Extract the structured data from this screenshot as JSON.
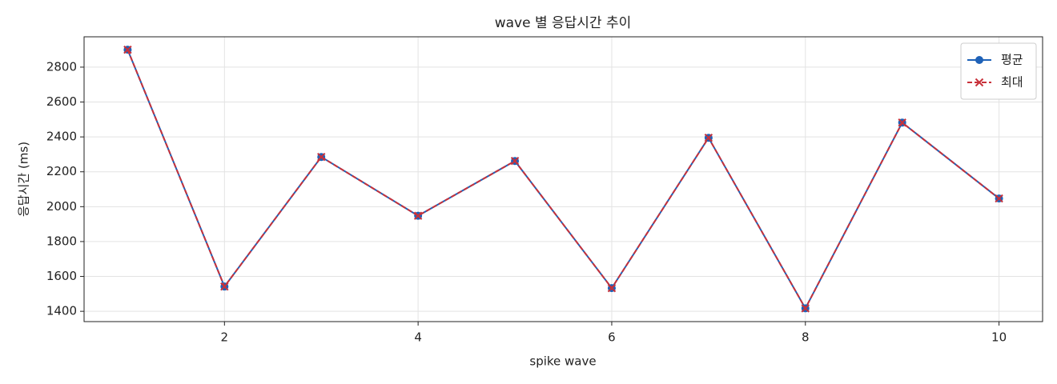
{
  "chart_data": {
    "type": "line",
    "title": "wave 별 응답시간 추이",
    "xlabel": "spike wave",
    "ylabel": "응답시간 (ms)",
    "x": [
      1,
      2,
      3,
      4,
      5,
      6,
      7,
      8,
      9,
      10
    ],
    "series": [
      {
        "name": "평균",
        "color": "#1f62b8",
        "linestyle": "solid",
        "marker": "o",
        "values": [
          2900,
          1542,
          2285,
          1948,
          2262,
          1533,
          2395,
          1417,
          2482,
          2047
        ]
      },
      {
        "name": "최대",
        "color": "#c8313a",
        "linestyle": "dashed",
        "marker": "x",
        "values": [
          2900,
          1542,
          2285,
          1948,
          2262,
          1533,
          2395,
          1417,
          2482,
          2047
        ]
      }
    ],
    "xlim": [
      0.55,
      10.45
    ],
    "xticks": [
      2,
      4,
      6,
      8,
      10
    ],
    "ylim": [
      1341,
      2974
    ],
    "yticks": [
      1400,
      1600,
      1800,
      2000,
      2200,
      2400,
      2600,
      2800
    ],
    "grid": true,
    "legend": "upper right"
  }
}
